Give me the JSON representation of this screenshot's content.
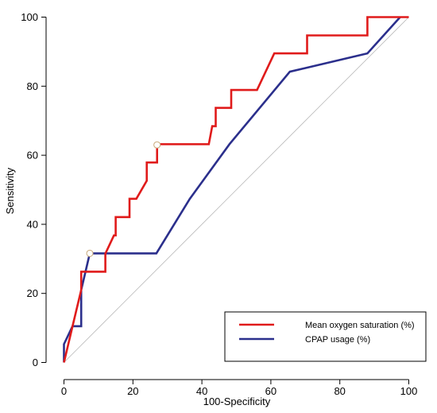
{
  "chart_data": {
    "type": "line",
    "title": "",
    "xlabel": "100-Specificity",
    "ylabel": "Sensitivity",
    "xlim": [
      0,
      100
    ],
    "ylim": [
      0,
      100
    ],
    "xticks": [
      "0",
      "20",
      "40",
      "60",
      "80",
      "100"
    ],
    "yticks": [
      "0",
      "20",
      "40",
      "60",
      "80",
      "100"
    ],
    "grid": false,
    "legend_position": "bottom-right",
    "reference_line": {
      "from": [
        0,
        0
      ],
      "to": [
        100,
        100
      ],
      "color": "#bbbbbb"
    },
    "series": [
      {
        "name": "Mean oxygen saturation (%)",
        "color": "#e01b1b",
        "marker_points": [
          [
            27,
            63
          ]
        ],
        "x": [
          0,
          0,
          2.5,
          5,
          5,
          12,
          12,
          14.5,
          15,
          15,
          19,
          19,
          21,
          21,
          24,
          24,
          27,
          27,
          27,
          42,
          43,
          44,
          44,
          48.5,
          48.5,
          56,
          61,
          61,
          70.5,
          70.5,
          88,
          88,
          100
        ],
        "y": [
          0,
          0,
          10.5,
          21,
          26.3,
          26.3,
          31.5,
          36.8,
          36.8,
          42.1,
          42.1,
          47.4,
          47.4,
          47.4,
          52.6,
          57.9,
          57.9,
          63.2,
          63.2,
          63.2,
          68.4,
          68.4,
          73.7,
          73.7,
          78.9,
          78.9,
          89.5,
          89.5,
          89.5,
          94.7,
          94.7,
          100,
          100
        ]
      },
      {
        "name": "CPAP usage (%)",
        "color": "#2b2f8c",
        "marker_points": [
          [
            7.5,
            31.6
          ]
        ],
        "x": [
          0,
          0,
          2.5,
          5,
          5,
          7.5,
          7.5,
          26.8,
          36.5,
          48,
          65.5,
          88,
          97.5
        ],
        "y": [
          0,
          5.3,
          10.5,
          10.5,
          21,
          31.6,
          31.6,
          31.6,
          47.4,
          63.2,
          84.2,
          89.5,
          100
        ]
      }
    ]
  }
}
